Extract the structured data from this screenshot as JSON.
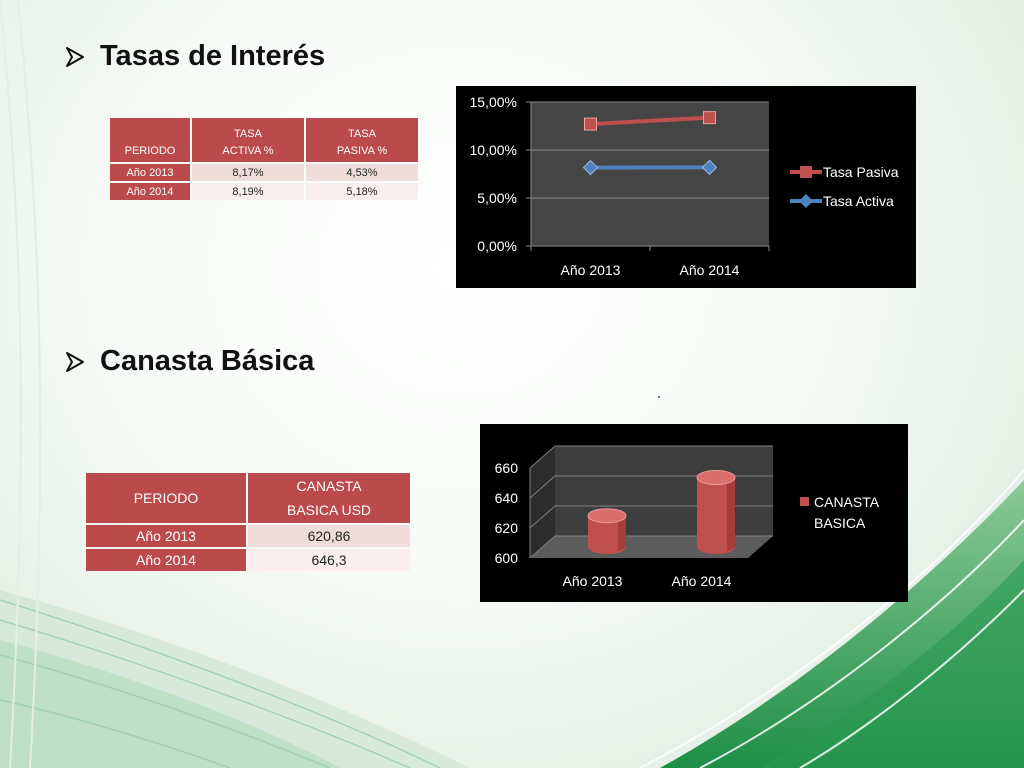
{
  "slide": {
    "heading1": "Tasas de Interés",
    "heading2": "Canasta Básica"
  },
  "table1": {
    "headers": {
      "periodo": "PERIODO",
      "activa_line1": "TASA",
      "activa_line2": "ACTIVA %",
      "pasiva_line1": "TASA",
      "pasiva_line2": "PASIVA %"
    },
    "rows": [
      {
        "periodo": "Año 2013",
        "activa": "8,17%",
        "pasiva": "4,53%"
      },
      {
        "periodo": "Año 2014",
        "activa": "8,19%",
        "pasiva": "5,18%"
      }
    ]
  },
  "table2": {
    "headers": {
      "periodo": "PERIODO",
      "canasta_line1": "CANASTA",
      "canasta_line2": "BASICA  USD"
    },
    "rows": [
      {
        "periodo": "Año 2013",
        "valor": "620,86"
      },
      {
        "periodo": "Año 2014",
        "valor": "646,3"
      }
    ]
  },
  "colors": {
    "table_header": "#bb4a4b",
    "tasa_pasiva": "#c0504d",
    "tasa_activa": "#4f81bd",
    "canasta": "#c0504d",
    "chart_bg": "#000000"
  },
  "chart_data": [
    {
      "type": "line",
      "categories": [
        "Año 2013",
        "Año 2014"
      ],
      "series": [
        {
          "name": "Tasa Pasiva",
          "values": [
            12.7,
            13.37
          ],
          "color": "#c0504d",
          "marker": "square"
        },
        {
          "name": "Tasa Activa",
          "values": [
            8.17,
            8.19
          ],
          "color": "#4f81bd",
          "marker": "diamond"
        }
      ],
      "ylim": [
        0,
        15
      ],
      "yticks": [
        0,
        5,
        10,
        15
      ],
      "ytick_labels": [
        "0,00%",
        "5,00%",
        "10,00%",
        "15,00%"
      ],
      "grid": true,
      "legend_position": "right"
    },
    {
      "type": "bar",
      "style": "3d-cylinder",
      "categories": [
        "Año 2013",
        "Año 2014"
      ],
      "series": [
        {
          "name": "CANASTA BASICA",
          "values": [
            620.86,
            646.3
          ],
          "color": "#c0504d"
        }
      ],
      "legend_lines": [
        "CANASTA",
        "BASICA"
      ],
      "ylim": [
        600,
        660
      ],
      "yticks": [
        600,
        620,
        640,
        660
      ],
      "ytick_labels": [
        "600",
        "620",
        "640",
        "660"
      ],
      "grid": true,
      "legend_position": "right"
    }
  ]
}
